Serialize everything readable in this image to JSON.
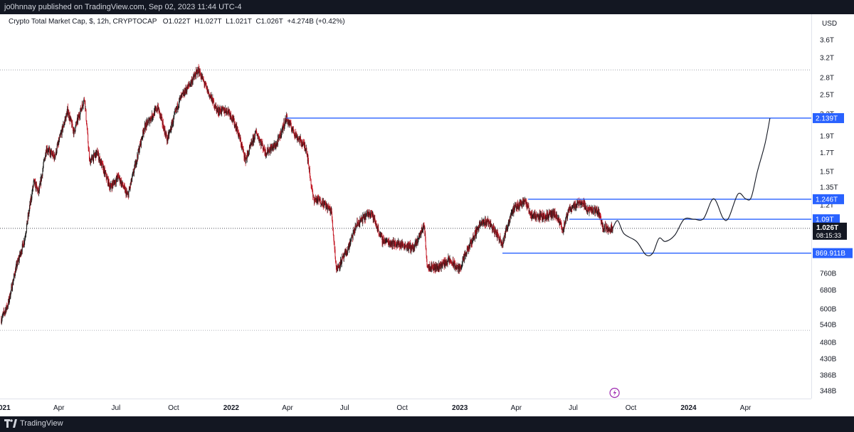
{
  "header": {
    "published_by": "jo0hnnay published on TradingView.com, Sep 02, 2023 11:44 UTC-4"
  },
  "legend": {
    "symbol": "Crypto Total Market Cap, $, 12h, CRYPTOCAP",
    "open": "O1.022T",
    "high": "H1.027T",
    "low": "L1.021T",
    "close": "C1.026T",
    "change": "+4.274B (+0.42%)"
  },
  "footer": {
    "brand": "TradingView"
  },
  "colors": {
    "up": "#1a1a1a",
    "down": "#c2121f",
    "level_line": "#2962ff",
    "projection": "#131722",
    "axis_text": "#131722"
  },
  "chart_data": {
    "type": "candlestick",
    "title": "Crypto Total Market Cap, $, 12h, CRYPTOCAP",
    "currency": "USD",
    "y_scale": "log",
    "ylim": [
      330,
      4000
    ],
    "y_ticks": [
      {
        "value": 3600,
        "label": "3.6T"
      },
      {
        "value": 3200,
        "label": "3.2T"
      },
      {
        "value": 2800,
        "label": "2.8T"
      },
      {
        "value": 2500,
        "label": "2.5T"
      },
      {
        "value": 2200,
        "label": "2.2T"
      },
      {
        "value": 1900,
        "label": "1.9T"
      },
      {
        "value": 1700,
        "label": "1.7T"
      },
      {
        "value": 1500,
        "label": "1.5T"
      },
      {
        "value": 1350,
        "label": "1.35T"
      },
      {
        "value": 1200,
        "label": "1.2T"
      },
      {
        "value": 760,
        "label": "760B"
      },
      {
        "value": 680,
        "label": "680B"
      },
      {
        "value": 600,
        "label": "600B"
      },
      {
        "value": 540,
        "label": "540B"
      },
      {
        "value": 480,
        "label": "480B"
      },
      {
        "value": 430,
        "label": "430B"
      },
      {
        "value": 386,
        "label": "386B"
      },
      {
        "value": 348,
        "label": "348B"
      }
    ],
    "x_range": [
      "2020-12-28",
      "2024-07-15"
    ],
    "x_ticks": [
      {
        "date": "2021-01-01",
        "label": "2021"
      },
      {
        "date": "2021-04-01",
        "label": "Apr"
      },
      {
        "date": "2021-07-01",
        "label": "Jul"
      },
      {
        "date": "2021-10-01",
        "label": "Oct"
      },
      {
        "date": "2022-01-01",
        "label": "2022"
      },
      {
        "date": "2022-04-01",
        "label": "Apr"
      },
      {
        "date": "2022-07-01",
        "label": "Jul"
      },
      {
        "date": "2022-10-01",
        "label": "Oct"
      },
      {
        "date": "2023-01-01",
        "label": "2023"
      },
      {
        "date": "2023-04-01",
        "label": "Apr"
      },
      {
        "date": "2023-07-01",
        "label": "Jul"
      },
      {
        "date": "2023-10-01",
        "label": "Oct"
      },
      {
        "date": "2024-01-01",
        "label": "2024"
      },
      {
        "date": "2024-04-01",
        "label": "Apr"
      }
    ],
    "price_path": [
      {
        "date": "2020-12-30",
        "value": 560
      },
      {
        "date": "2021-01-10",
        "value": 620
      },
      {
        "date": "2021-01-22",
        "value": 780
      },
      {
        "date": "2021-02-05",
        "value": 950
      },
      {
        "date": "2021-02-20",
        "value": 1400
      },
      {
        "date": "2021-02-28",
        "value": 1300
      },
      {
        "date": "2021-03-12",
        "value": 1750
      },
      {
        "date": "2021-03-25",
        "value": 1650
      },
      {
        "date": "2021-04-15",
        "value": 2250
      },
      {
        "date": "2021-04-25",
        "value": 1950
      },
      {
        "date": "2021-05-12",
        "value": 2450
      },
      {
        "date": "2021-05-20",
        "value": 1600
      },
      {
        "date": "2021-06-01",
        "value": 1700
      },
      {
        "date": "2021-06-22",
        "value": 1350
      },
      {
        "date": "2021-07-05",
        "value": 1450
      },
      {
        "date": "2021-07-20",
        "value": 1270
      },
      {
        "date": "2021-08-15",
        "value": 2000
      },
      {
        "date": "2021-09-06",
        "value": 2300
      },
      {
        "date": "2021-09-21",
        "value": 1850
      },
      {
        "date": "2021-10-10",
        "value": 2400
      },
      {
        "date": "2021-10-25",
        "value": 2650
      },
      {
        "date": "2021-11-10",
        "value": 2950
      },
      {
        "date": "2021-11-25",
        "value": 2550
      },
      {
        "date": "2021-12-10",
        "value": 2250
      },
      {
        "date": "2021-12-28",
        "value": 2250
      },
      {
        "date": "2022-01-10",
        "value": 2000
      },
      {
        "date": "2022-01-24",
        "value": 1620
      },
      {
        "date": "2022-02-10",
        "value": 1950
      },
      {
        "date": "2022-02-25",
        "value": 1700
      },
      {
        "date": "2022-03-15",
        "value": 1800
      },
      {
        "date": "2022-03-30",
        "value": 2139
      },
      {
        "date": "2022-04-15",
        "value": 1900
      },
      {
        "date": "2022-05-01",
        "value": 1750
      },
      {
        "date": "2022-05-12",
        "value": 1250
      },
      {
        "date": "2022-05-25",
        "value": 1230
      },
      {
        "date": "2022-06-10",
        "value": 1150
      },
      {
        "date": "2022-06-18",
        "value": 780
      },
      {
        "date": "2022-07-05",
        "value": 880
      },
      {
        "date": "2022-07-20",
        "value": 1050
      },
      {
        "date": "2022-08-12",
        "value": 1150
      },
      {
        "date": "2022-08-30",
        "value": 950
      },
      {
        "date": "2022-09-15",
        "value": 930
      },
      {
        "date": "2022-10-01",
        "value": 920
      },
      {
        "date": "2022-10-20",
        "value": 900
      },
      {
        "date": "2022-11-05",
        "value": 1050
      },
      {
        "date": "2022-11-10",
        "value": 800
      },
      {
        "date": "2022-11-25",
        "value": 790
      },
      {
        "date": "2022-12-15",
        "value": 830
      },
      {
        "date": "2022-12-31",
        "value": 780
      },
      {
        "date": "2023-01-15",
        "value": 900
      },
      {
        "date": "2023-02-01",
        "value": 1050
      },
      {
        "date": "2023-02-15",
        "value": 1080
      },
      {
        "date": "2023-03-10",
        "value": 930
      },
      {
        "date": "2023-03-25",
        "value": 1150
      },
      {
        "date": "2023-04-14",
        "value": 1240
      },
      {
        "date": "2023-04-25",
        "value": 1120
      },
      {
        "date": "2023-05-15",
        "value": 1110
      },
      {
        "date": "2023-06-01",
        "value": 1130
      },
      {
        "date": "2023-06-15",
        "value": 1020
      },
      {
        "date": "2023-06-25",
        "value": 1170
      },
      {
        "date": "2023-07-14",
        "value": 1230
      },
      {
        "date": "2023-07-25",
        "value": 1160
      },
      {
        "date": "2023-08-10",
        "value": 1150
      },
      {
        "date": "2023-08-18",
        "value": 1030
      },
      {
        "date": "2023-09-02",
        "value": 1026
      }
    ],
    "projection_path": [
      {
        "date": "2023-09-02",
        "value": 1026
      },
      {
        "date": "2023-09-10",
        "value": 1080
      },
      {
        "date": "2023-09-20",
        "value": 990
      },
      {
        "date": "2023-10-10",
        "value": 940
      },
      {
        "date": "2023-10-25",
        "value": 860
      },
      {
        "date": "2023-11-05",
        "value": 870
      },
      {
        "date": "2023-11-15",
        "value": 960
      },
      {
        "date": "2023-11-25",
        "value": 940
      },
      {
        "date": "2023-12-10",
        "value": 980
      },
      {
        "date": "2023-12-25",
        "value": 1090
      },
      {
        "date": "2024-01-10",
        "value": 1090
      },
      {
        "date": "2024-01-25",
        "value": 1095
      },
      {
        "date": "2024-02-10",
        "value": 1250
      },
      {
        "date": "2024-02-25",
        "value": 1100
      },
      {
        "date": "2024-03-05",
        "value": 1100
      },
      {
        "date": "2024-03-20",
        "value": 1290
      },
      {
        "date": "2024-04-01",
        "value": 1250
      },
      {
        "date": "2024-04-10",
        "value": 1260
      },
      {
        "date": "2024-04-20",
        "value": 1500
      },
      {
        "date": "2024-05-02",
        "value": 1800
      },
      {
        "date": "2024-05-10",
        "value": 2139
      }
    ],
    "horizontal_levels": [
      {
        "value": 2139,
        "label": "2.139T",
        "from": "2022-03-30"
      },
      {
        "value": 1246,
        "label": "1.246T",
        "from": "2023-04-20"
      },
      {
        "value": 1090,
        "label": "1.09T",
        "from": "2023-06-25"
      },
      {
        "value": 869.911,
        "label": "869.911B",
        "from": "2023-03-10"
      }
    ],
    "reference_levels": [
      2950,
      520
    ],
    "current_price": {
      "value": 1026,
      "label": "1.026T",
      "countdown": "08:15:33"
    },
    "legend": "none"
  }
}
